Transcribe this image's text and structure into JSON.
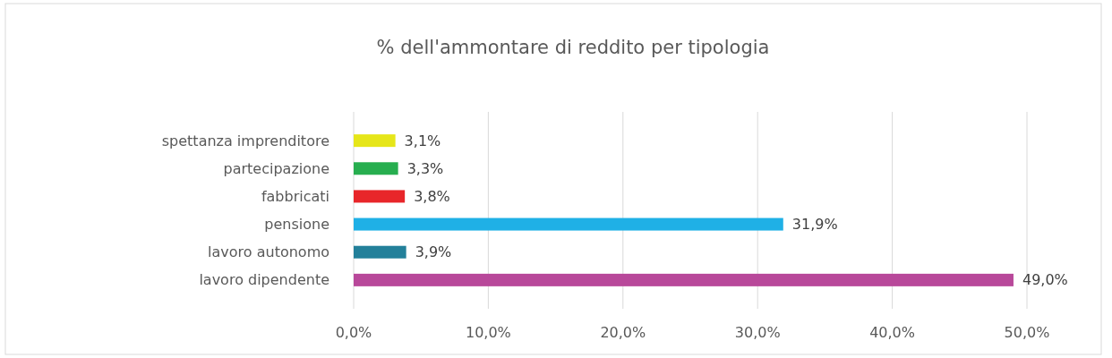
{
  "chart_data": {
    "type": "bar",
    "orientation": "horizontal",
    "title": "% dell'ammontare di reddito per tipologia",
    "categories": [
      "spettanza imprenditore",
      "partecipazione",
      "fabbricati",
      "pensione",
      "lavoro autonomo",
      "lavoro dipendente"
    ],
    "values": [
      3.1,
      3.3,
      3.8,
      31.9,
      3.9,
      49.0
    ],
    "colors": [
      "#e6e619",
      "#27ae4f",
      "#e8262a",
      "#1fb0e6",
      "#23809a",
      "#b8489a"
    ],
    "value_labels": [
      "3,1%",
      "3,3%",
      "3,8%",
      "31,9%",
      "3,9%",
      "49,0%"
    ],
    "xlim": [
      0,
      50
    ],
    "xticks": [
      {
        "value": 0,
        "label": "0,0%"
      },
      {
        "value": 10,
        "label": "10,0%"
      },
      {
        "value": 20,
        "label": "20,0%"
      },
      {
        "value": 30,
        "label": "30,0%"
      },
      {
        "value": 40,
        "label": "40,0%"
      },
      {
        "value": 50,
        "label": "50,0%"
      }
    ],
    "grid": "x"
  }
}
